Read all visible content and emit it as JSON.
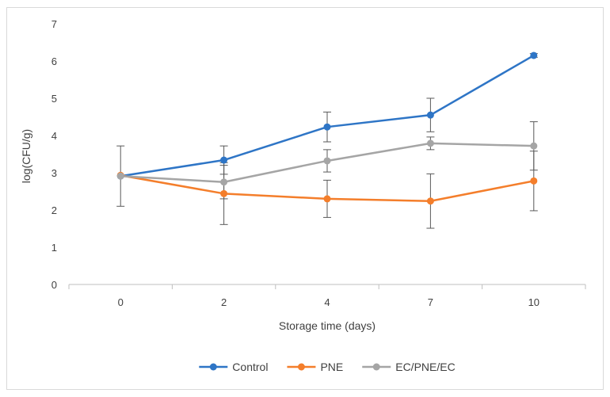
{
  "chart_data": {
    "type": "line",
    "categories": [
      "0",
      "2",
      "4",
      "7",
      "10"
    ],
    "xlabel": "Storage time (days)",
    "ylabel": "log(CFU/g)",
    "ylim": [
      0,
      7
    ],
    "yticks": [
      "0",
      "1",
      "2",
      "3",
      "4",
      "5",
      "6",
      "7"
    ],
    "grid": false,
    "legend_position": "bottom",
    "series": [
      {
        "name": "Control",
        "color": "#2E75C6",
        "values": [
          2.91,
          3.34,
          4.23,
          4.55,
          6.15
        ],
        "errors": [
          0,
          0.38,
          0.4,
          0.45,
          0.05
        ]
      },
      {
        "name": "PNE",
        "color": "#F47E2B",
        "values": [
          2.93,
          2.44,
          2.3,
          2.24,
          2.78
        ],
        "errors": [
          0,
          0.83,
          0.5,
          0.73,
          0.8
        ]
      },
      {
        "name": "EC/PNE/EC",
        "color": "#A5A5A5",
        "values": [
          2.91,
          2.75,
          3.32,
          3.79,
          3.72
        ],
        "errors": [
          0.81,
          0.45,
          0.3,
          0.17,
          0.65
        ]
      }
    ]
  }
}
